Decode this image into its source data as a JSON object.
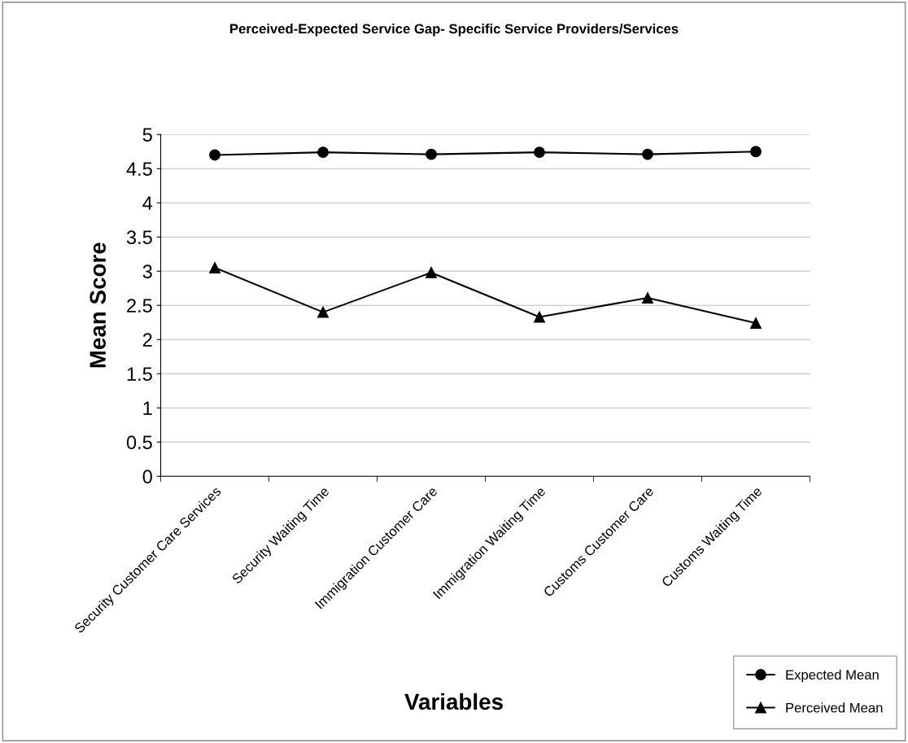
{
  "chart_data": {
    "type": "line",
    "title": "Perceived-Expected Service Gap- Specific Service Providers/Services",
    "xlabel": "Variables",
    "ylabel": "Mean Score",
    "categories": [
      "Security Customer Care Services",
      "Security Waiting Time",
      "Immigration Customer Care",
      "Immigration Waiting Time",
      "Customs Customer Care",
      "Customs Waiting Time"
    ],
    "series": [
      {
        "name": "Expected Mean",
        "color": "#000000",
        "marker": "circle",
        "values": [
          4.7,
          4.74,
          4.71,
          4.74,
          4.71,
          4.75
        ]
      },
      {
        "name": "Perceived Mean",
        "color": "#000000",
        "marker": "triangle",
        "values": [
          3.05,
          2.4,
          2.98,
          2.33,
          2.61,
          2.24
        ]
      }
    ],
    "ylim": [
      0,
      5
    ],
    "yticks": [
      0,
      0.5,
      1,
      1.5,
      2,
      2.5,
      3,
      3.5,
      4,
      4.5,
      5
    ],
    "grid": "y",
    "legend": "bottom right",
    "line_style": "solid"
  }
}
